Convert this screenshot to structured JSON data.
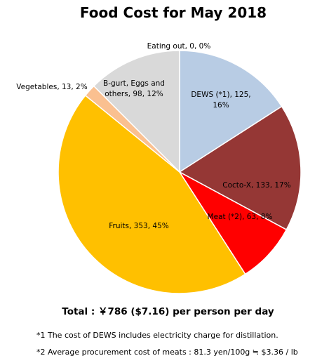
{
  "chart_data": {
    "type": "pie",
    "title": "Food Cost for May  2018",
    "slices": [
      {
        "name": "Eating out",
        "value": 0,
        "percent": 0,
        "color": "#b8cce4",
        "label": "Eating out, 0, 0%"
      },
      {
        "name": "DEWS (*1)",
        "value": 125,
        "percent": 16,
        "color": "#b8cce4",
        "label_lines": [
          "DEWS (*1), 125,",
          "16%"
        ]
      },
      {
        "name": "Cocto-X",
        "value": 133,
        "percent": 17,
        "color": "#953735",
        "label": "Cocto-X, 133, 17%"
      },
      {
        "name": "Meat (*2)",
        "value": 63,
        "percent": 8,
        "color": "#ff0000",
        "label": "Meat (*2), 63, 8%"
      },
      {
        "name": "Fruits",
        "value": 353,
        "percent": 45,
        "color": "#ffc000",
        "label": "Fruits, 353, 45%"
      },
      {
        "name": "Vegetables",
        "value": 13,
        "percent": 2,
        "color": "#fac090",
        "label": "Vegetables, 13, 2%"
      },
      {
        "name": "B-gurt, Eggs and others",
        "value": 98,
        "percent": 12,
        "color": "#d9d9d9",
        "label_lines": [
          "B-gurt, Eggs and",
          "others, 98, 12%"
        ]
      }
    ]
  },
  "footer": {
    "total": "Total : ￥786 ($7.16) per person per day",
    "notes": [
      "*1 The cost of DEWS includes electricity charge for distillation.",
      "*2 Average procurement cost of meats : 81.3 yen/100g ≒ $3.36 / lb"
    ]
  }
}
